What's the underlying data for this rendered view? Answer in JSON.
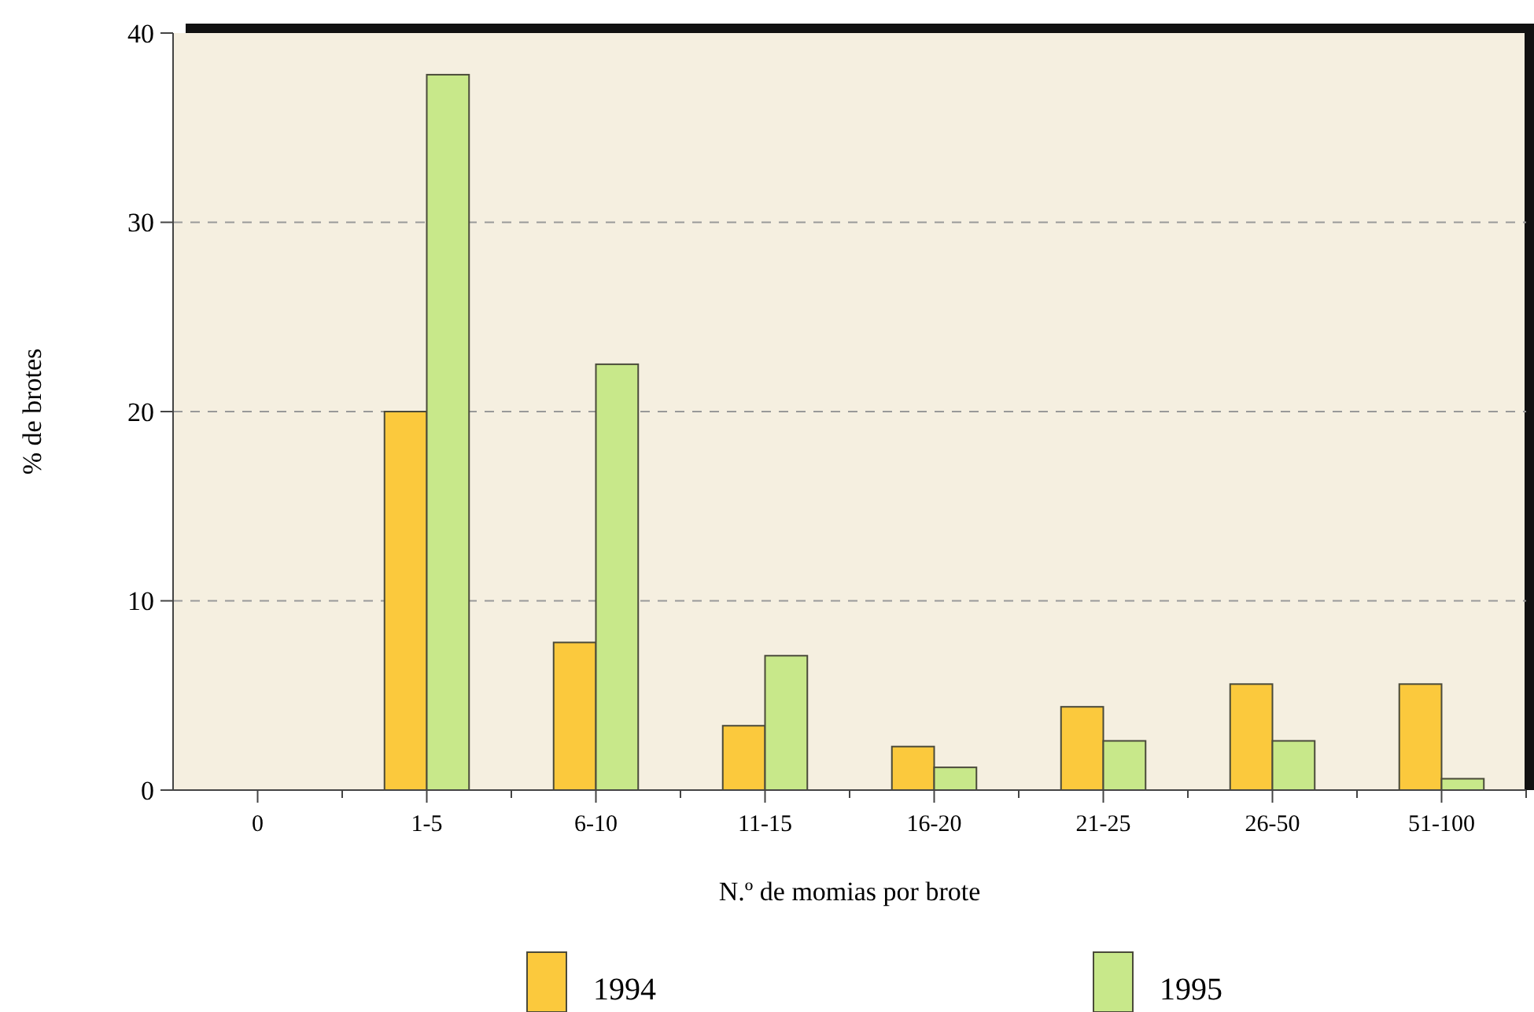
{
  "chart_data": {
    "type": "bar",
    "xlabel": "N.º de momias por brote",
    "ylabel": "% de brotes",
    "categories": [
      "0",
      "1-5",
      "6-10",
      "11-15",
      "16-20",
      "21-25",
      "26-50",
      "51-100"
    ],
    "series": [
      {
        "name": "1994",
        "color": "#fbc93d",
        "values": [
          0,
          20,
          7.8,
          3.4,
          2.3,
          4.4,
          5.6,
          5.6
        ]
      },
      {
        "name": "1995",
        "color": "#c8e88a",
        "values": [
          0,
          37.8,
          22.5,
          7.1,
          1.2,
          2.6,
          2.6,
          0.6
        ]
      }
    ],
    "ylim": [
      0,
      40
    ],
    "yticks": [
      0,
      10,
      20,
      30,
      40
    ],
    "grid": "y",
    "legend": "bottom"
  }
}
